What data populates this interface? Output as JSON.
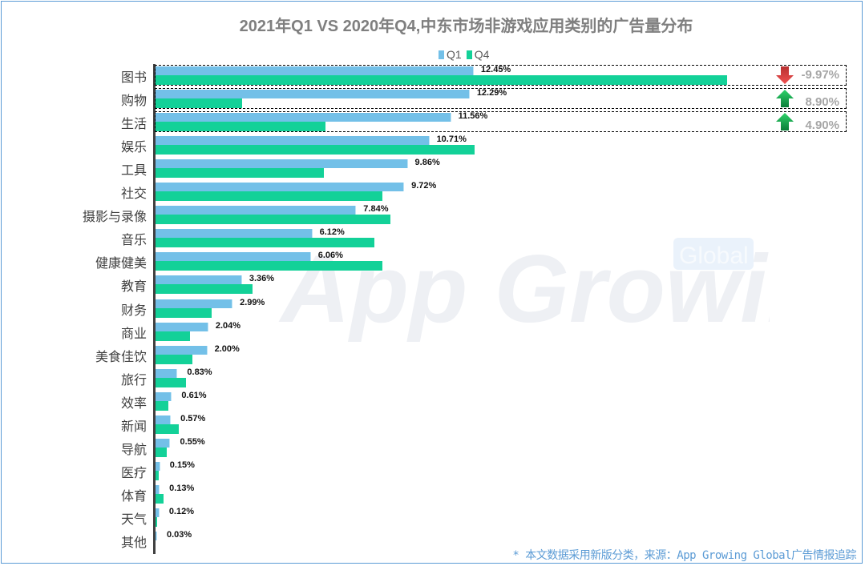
{
  "title": "2021年Q1 VS 2020年Q4,中东市场非游戏应用类别的广告量分布",
  "legend": [
    {
      "label": "Q1",
      "color": "#73c0e8"
    },
    {
      "label": "Q4",
      "color": "#13d198"
    }
  ],
  "watermark": {
    "main": "App Growing",
    "badge": "Global"
  },
  "footnote": "* 本文数据采用新版分类，来源：App Growing Global广告情报追踪",
  "highlights": [
    {
      "category": "图书",
      "change": "-9.97%",
      "direction": "down",
      "color": "#e03c3c"
    },
    {
      "category": "购物",
      "change": "8.90%",
      "direction": "up",
      "color": "#0ea14a"
    },
    {
      "category": "生活",
      "change": "4.90%",
      "direction": "up",
      "color": "#0ea14a"
    }
  ],
  "rows": [
    {
      "cat": "图书",
      "q1": 12.45,
      "q1_label": "12.45%",
      "q4": 22.42
    },
    {
      "cat": "购物",
      "q1": 12.29,
      "q1_label": "12.29%",
      "q4": 3.39
    },
    {
      "cat": "生活",
      "q1": 11.56,
      "q1_label": "11.56%",
      "q4": 6.66
    },
    {
      "cat": "娱乐",
      "q1": 10.71,
      "q1_label": "10.71%",
      "q4": 12.5
    },
    {
      "cat": "工具",
      "q1": 9.86,
      "q1_label": "9.86%",
      "q4": 6.6
    },
    {
      "cat": "社交",
      "q1": 9.72,
      "q1_label": "9.72%",
      "q4": 8.9
    },
    {
      "cat": "摄影与录像",
      "q1": 7.84,
      "q1_label": "7.84%",
      "q4": 9.2
    },
    {
      "cat": "音乐",
      "q1": 6.12,
      "q1_label": "6.12%",
      "q4": 8.6
    },
    {
      "cat": "健康健美",
      "q1": 6.06,
      "q1_label": "6.06%",
      "q4": 8.9
    },
    {
      "cat": "教育",
      "q1": 3.36,
      "q1_label": "3.36%",
      "q4": 3.8
    },
    {
      "cat": "财务",
      "q1": 2.99,
      "q1_label": "2.99%",
      "q4": 2.2
    },
    {
      "cat": "商业",
      "q1": 2.04,
      "q1_label": "2.04%",
      "q4": 1.35
    },
    {
      "cat": "美食佳饮",
      "q1": 2.0,
      "q1_label": "2.00%",
      "q4": 1.45
    },
    {
      "cat": "旅行",
      "q1": 0.83,
      "q1_label": "0.83%",
      "q4": 1.2
    },
    {
      "cat": "效率",
      "q1": 0.61,
      "q1_label": "0.61%",
      "q4": 0.5
    },
    {
      "cat": "新闻",
      "q1": 0.57,
      "q1_label": "0.57%",
      "q4": 0.9
    },
    {
      "cat": "导航",
      "q1": 0.55,
      "q1_label": "0.55%",
      "q4": 0.44
    },
    {
      "cat": "医疗",
      "q1": 0.15,
      "q1_label": "0.15%",
      "q4": 0.13
    },
    {
      "cat": "体育",
      "q1": 0.13,
      "q1_label": "0.13%",
      "q4": 0.3
    },
    {
      "cat": "天气",
      "q1": 0.12,
      "q1_label": "0.12%",
      "q4": 0.07
    },
    {
      "cat": "其他",
      "q1": 0.03,
      "q1_label": "0.03%",
      "q4": 0.0
    }
  ],
  "chart_data": {
    "type": "bar",
    "orientation": "horizontal",
    "title": "2021年Q1 VS 2020年Q4,中东市场非游戏应用类别的广告量分布",
    "xlabel": "",
    "ylabel": "",
    "grid": false,
    "legend_position": "top",
    "categories": [
      "图书",
      "购物",
      "生活",
      "娱乐",
      "工具",
      "社交",
      "摄影与录像",
      "音乐",
      "健康健美",
      "教育",
      "财务",
      "商业",
      "美食佳饮",
      "旅行",
      "效率",
      "新闻",
      "导航",
      "医疗",
      "体育",
      "天气",
      "其他"
    ],
    "series": [
      {
        "name": "Q1",
        "values": [
          12.45,
          12.29,
          11.56,
          10.71,
          9.86,
          9.72,
          7.84,
          6.12,
          6.06,
          3.36,
          2.99,
          2.04,
          2.0,
          0.83,
          0.61,
          0.57,
          0.55,
          0.15,
          0.13,
          0.12,
          0.03
        ]
      },
      {
        "name": "Q4",
        "values": [
          22.42,
          3.39,
          6.66,
          12.5,
          6.6,
          8.9,
          9.2,
          8.6,
          8.9,
          3.8,
          2.2,
          1.35,
          1.45,
          1.2,
          0.5,
          0.9,
          0.44,
          0.13,
          0.3,
          0.07,
          0.0
        ]
      }
    ],
    "annotations": [
      {
        "category": "图书",
        "text": "-9.97%"
      },
      {
        "category": "购物",
        "text": "8.90%"
      },
      {
        "category": "生活",
        "text": "4.90%"
      }
    ],
    "units": "%"
  }
}
